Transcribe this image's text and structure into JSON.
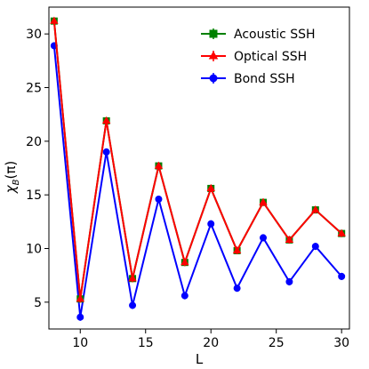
{
  "chart_data": {
    "type": "line",
    "xlabel": "L",
    "ylabel": "χ",
    "ylabel_sub": "B",
    "ylabel_arg": "(π)",
    "xlim": [
      7.6,
      30.6
    ],
    "ylim": [
      2.5,
      32.5
    ],
    "xticks": [
      10,
      15,
      20,
      25,
      30
    ],
    "yticks": [
      5,
      10,
      15,
      20,
      25,
      30
    ],
    "legend_position": "upper-right",
    "x": [
      8,
      10,
      12,
      14,
      16,
      18,
      20,
      22,
      24,
      26,
      28,
      30
    ],
    "series": [
      {
        "name": "Acoustic SSH",
        "color": "#008000",
        "marker": "square",
        "values": [
          31.2,
          5.3,
          21.9,
          7.2,
          17.7,
          8.7,
          15.6,
          9.8,
          14.3,
          10.8,
          13.6,
          11.4
        ]
      },
      {
        "name": "Optical SSH",
        "color": "#ff0000",
        "marker": "triangle",
        "values": [
          31.2,
          5.3,
          21.9,
          7.2,
          17.7,
          8.7,
          15.6,
          9.8,
          14.3,
          10.8,
          13.6,
          11.4
        ]
      },
      {
        "name": "Bond SSH",
        "color": "#0000ff",
        "marker": "circle",
        "values": [
          28.9,
          3.6,
          19.0,
          4.7,
          14.6,
          5.6,
          12.3,
          6.3,
          11.0,
          6.9,
          10.2,
          7.4
        ]
      }
    ]
  }
}
